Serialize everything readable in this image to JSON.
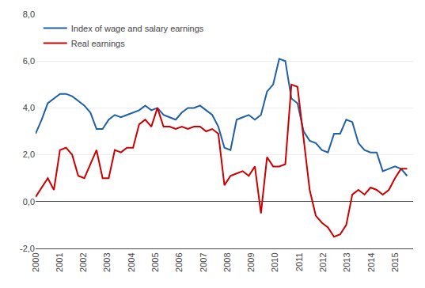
{
  "chart_data": {
    "type": "line",
    "x": [
      2000,
      2000.2541,
      2000.5082,
      2000.7623,
      2001.0164,
      2001.2705,
      2001.5246,
      2001.7787,
      2002.0328,
      2002.2869,
      2002.541,
      2002.7951,
      2003.0492,
      2003.3033,
      2003.5574,
      2003.8115,
      2004.0656,
      2004.3197,
      2004.5738,
      2004.8279,
      2005.082,
      2005.3361,
      2005.5902,
      2005.8443,
      2006.0984,
      2006.3525,
      2006.6066,
      2006.8607,
      2007.1148,
      2007.3689,
      2007.623,
      2007.877,
      2008.1311,
      2008.3852,
      2008.6393,
      2008.8934,
      2009.1475,
      2009.4016,
      2009.6557,
      2009.9098,
      2010.1639,
      2010.418,
      2010.6721,
      2010.9262,
      2011.1803,
      2011.4344,
      2011.6885,
      2011.9426,
      2012.1967,
      2012.4508,
      2012.7049,
      2012.959,
      2013.2131,
      2013.4672,
      2013.7213,
      2013.9754,
      2014.2295,
      2014.4836,
      2014.7377,
      2014.9918,
      2015.2459,
      2015.5
    ],
    "series": [
      {
        "name": "Index of wage and salary earnings",
        "color": "#1f5fa6",
        "values": [
          2.9,
          3.5,
          4.2,
          4.4,
          4.6,
          4.6,
          4.5,
          4.3,
          4.1,
          3.8,
          3.1,
          3.1,
          3.5,
          3.7,
          3.6,
          3.7,
          3.8,
          3.9,
          4.1,
          3.9,
          4.0,
          3.7,
          3.6,
          3.5,
          3.8,
          4.0,
          4.0,
          4.1,
          3.9,
          3.7,
          3.2,
          2.3,
          2.2,
          3.5,
          3.6,
          3.7,
          3.5,
          3.7,
          4.7,
          5.0,
          6.1,
          6.0,
          4.4,
          4.2,
          3.0,
          2.6,
          2.5,
          2.2,
          2.1,
          2.9,
          2.9,
          3.5,
          3.4,
          2.5,
          2.2,
          2.1,
          2.1,
          1.3,
          1.4,
          1.5,
          1.4,
          1.1
        ]
      },
      {
        "name": "Real earnings",
        "color": "#cc0000",
        "values": [
          0.2,
          0.6,
          1.0,
          0.5,
          2.2,
          2.3,
          2.0,
          1.1,
          1.0,
          1.6,
          2.2,
          1.0,
          1.0,
          2.2,
          2.1,
          2.3,
          2.3,
          3.3,
          3.5,
          3.2,
          4.0,
          3.2,
          3.2,
          3.1,
          3.2,
          3.1,
          3.2,
          3.2,
          3.0,
          3.1,
          2.9,
          0.7,
          1.1,
          1.2,
          1.3,
          1.1,
          1.5,
          -0.5,
          1.9,
          1.5,
          1.5,
          1.6,
          5.0,
          4.9,
          2.8,
          0.5,
          -0.6,
          -0.9,
          -1.1,
          -1.5,
          -1.4,
          -1.0,
          0.3,
          0.5,
          0.3,
          0.6,
          0.5,
          0.3,
          0.5,
          1.0,
          1.4,
          1.4
        ]
      }
    ],
    "xlim": [
      2000.0,
      2015.75
    ],
    "xticks": [
      2000,
      2001,
      2002,
      2003,
      2004,
      2005,
      2006,
      2007,
      2008,
      2009,
      2010,
      2011,
      2012,
      2013,
      2014,
      2015
    ],
    "ylim": [
      -2.0,
      8.0
    ],
    "yticks": [
      {
        "value": -2.0,
        "label": "-2,0"
      },
      {
        "value": 0.0,
        "label": "0,0"
      },
      {
        "value": 2.0,
        "label": "2,0"
      },
      {
        "value": 4.0,
        "label": "4,0"
      },
      {
        "value": 6.0,
        "label": "6,0"
      },
      {
        "value": 8.0,
        "label": "8,0"
      }
    ],
    "grid": "y",
    "legend": "upper left"
  }
}
